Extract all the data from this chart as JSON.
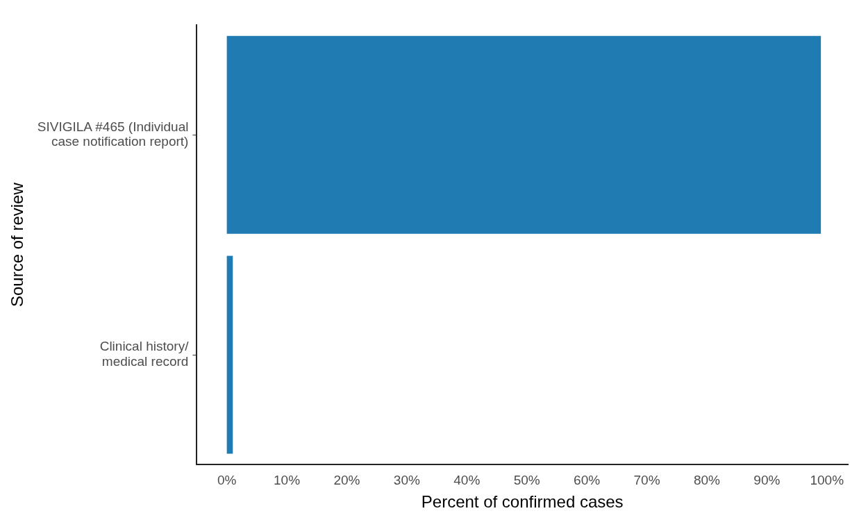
{
  "chart_data": {
    "type": "bar",
    "orientation": "horizontal",
    "xlabel": "Percent of confirmed cases",
    "ylabel": "Source of review",
    "categories": [
      "SIVIGILA #465 (Individual\ncase notification report)",
      "Clinical history/\nmedical record"
    ],
    "values": [
      99,
      1
    ],
    "color": "#1f7bb1",
    "xlim": [
      -5,
      103.5
    ],
    "xticks": [
      {
        "value": 0,
        "label": "0%"
      },
      {
        "value": 10,
        "label": "10%"
      },
      {
        "value": 20,
        "label": "20%"
      },
      {
        "value": 30,
        "label": "30%"
      },
      {
        "value": 40,
        "label": "40%"
      },
      {
        "value": 50,
        "label": "50%"
      },
      {
        "value": 60,
        "label": "60%"
      },
      {
        "value": 70,
        "label": "70%"
      },
      {
        "value": 80,
        "label": "80%"
      },
      {
        "value": 90,
        "label": "90%"
      },
      {
        "value": 100,
        "label": "100%"
      }
    ],
    "grid": false,
    "legend": false
  }
}
